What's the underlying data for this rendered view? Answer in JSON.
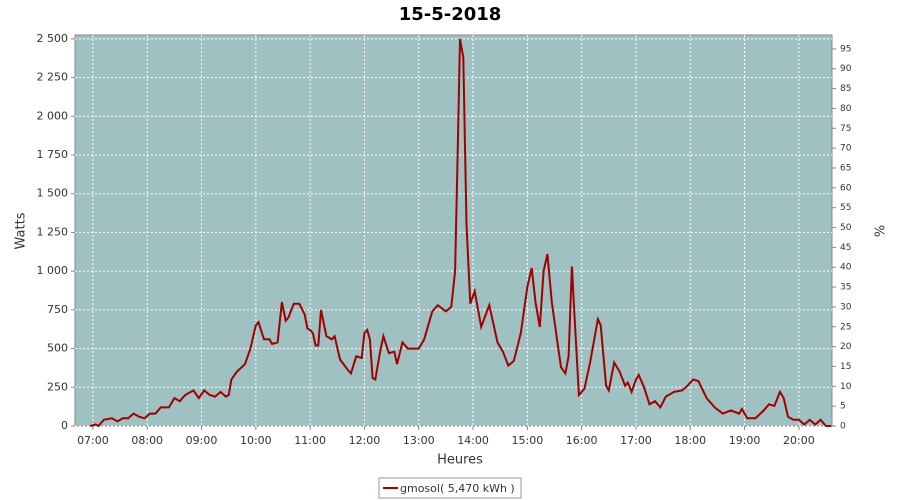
{
  "chart_data": {
    "type": "line",
    "title": "15-5-2018",
    "xlabel": "Heures",
    "ylabel": "Watts",
    "y2label": "%",
    "x": [
      6.95,
      7.05,
      7.1,
      7.2,
      7.35,
      7.45,
      7.55,
      7.65,
      7.75,
      7.85,
      7.95,
      8.05,
      8.15,
      8.25,
      8.4,
      8.5,
      8.6,
      8.7,
      8.85,
      8.95,
      9.05,
      9.15,
      9.25,
      9.35,
      9.45,
      9.5,
      9.55,
      9.65,
      9.8,
      9.9,
      10.0,
      10.05,
      10.15,
      10.25,
      10.3,
      10.4,
      10.48,
      10.55,
      10.6,
      10.7,
      10.8,
      10.9,
      10.95,
      11.0,
      11.05,
      11.1,
      11.15,
      11.2,
      11.3,
      11.4,
      11.45,
      11.55,
      11.7,
      11.75,
      11.85,
      11.95,
      12.0,
      12.05,
      12.1,
      12.15,
      12.2,
      12.3,
      12.35,
      12.45,
      12.55,
      12.6,
      12.7,
      12.8,
      12.9,
      13.0,
      13.1,
      13.25,
      13.35,
      13.5,
      13.6,
      13.67,
      13.72,
      13.76,
      13.82,
      13.88,
      13.95,
      14.03,
      14.15,
      14.3,
      14.45,
      14.55,
      14.65,
      14.75,
      14.88,
      15.0,
      15.08,
      15.15,
      15.23,
      15.3,
      15.37,
      15.45,
      15.55,
      15.62,
      15.7,
      15.76,
      15.82,
      15.87,
      15.95,
      16.05,
      16.15,
      16.3,
      16.35,
      16.45,
      16.5,
      16.6,
      16.7,
      16.8,
      16.85,
      16.92,
      17.0,
      17.05,
      17.15,
      17.25,
      17.35,
      17.45,
      17.55,
      17.7,
      17.85,
      17.95,
      18.05,
      18.15,
      18.3,
      18.45,
      18.6,
      18.75,
      18.9,
      18.95,
      19.05,
      19.2,
      19.35,
      19.45,
      19.55,
      19.65,
      19.72,
      19.8,
      19.9,
      20.0,
      20.1,
      20.2,
      20.3,
      20.4,
      20.5,
      20.6
    ],
    "series": [
      {
        "name": "gmosol( 5,470 kWh )",
        "color": "#a00000",
        "values": [
          0,
          10,
          0,
          40,
          50,
          30,
          50,
          50,
          80,
          60,
          50,
          80,
          80,
          120,
          120,
          180,
          160,
          200,
          230,
          180,
          230,
          200,
          190,
          220,
          190,
          200,
          300,
          350,
          400,
          500,
          650,
          670,
          560,
          560,
          530,
          540,
          800,
          680,
          700,
          790,
          790,
          720,
          630,
          620,
          600,
          520,
          520,
          750,
          580,
          560,
          580,
          430,
          360,
          340,
          450,
          440,
          600,
          620,
          560,
          310,
          300,
          500,
          580,
          470,
          480,
          400,
          540,
          500,
          500,
          500,
          560,
          740,
          780,
          740,
          770,
          1000,
          1800,
          2500,
          2380,
          1300,
          790,
          870,
          640,
          780,
          540,
          480,
          390,
          420,
          600,
          900,
          1020,
          800,
          640,
          1000,
          1110,
          800,
          550,
          380,
          340,
          450,
          1030,
          700,
          200,
          240,
          400,
          690,
          650,
          260,
          230,
          410,
          350,
          260,
          280,
          220,
          300,
          330,
          250,
          140,
          160,
          120,
          190,
          220,
          230,
          260,
          300,
          290,
          180,
          120,
          80,
          100,
          80,
          110,
          50,
          50,
          100,
          140,
          130,
          220,
          180,
          60,
          40,
          40,
          10,
          40,
          10,
          40,
          0,
          0
        ]
      }
    ],
    "xlim": [
      6.67,
      20.61
    ],
    "xticks": [
      {
        "value": 7,
        "label": "07:00"
      },
      {
        "value": 8,
        "label": "08:00"
      },
      {
        "value": 9,
        "label": "09:00"
      },
      {
        "value": 10,
        "label": "10:00"
      },
      {
        "value": 11,
        "label": "11:00"
      },
      {
        "value": 12,
        "label": "12:00"
      },
      {
        "value": 13,
        "label": "13:00"
      },
      {
        "value": 14,
        "label": "14:00"
      },
      {
        "value": 15,
        "label": "15:00"
      },
      {
        "value": 16,
        "label": "16:00"
      },
      {
        "value": 17,
        "label": "17:00"
      },
      {
        "value": 18,
        "label": "18:00"
      },
      {
        "value": 19,
        "label": "19:00"
      },
      {
        "value": 20,
        "label": "20:00"
      }
    ],
    "ylim": [
      0,
      2525
    ],
    "yticks": [
      0,
      250,
      500,
      750,
      {
        "value": 1000,
        "label": "1 000"
      },
      {
        "value": 1250,
        "label": "1 250"
      },
      {
        "value": 1500,
        "label": "1 500"
      },
      {
        "value": 1750,
        "label": "1 750"
      },
      {
        "value": 2000,
        "label": "2 000"
      },
      {
        "value": 2250,
        "label": "2 250"
      },
      {
        "value": 2500,
        "label": "2 500"
      }
    ],
    "y2lim": [
      0,
      98.5
    ],
    "y2ticks": [
      0,
      5,
      10,
      15,
      20,
      25,
      30,
      35,
      40,
      45,
      50,
      55,
      60,
      65,
      70,
      75,
      80,
      85,
      90,
      95
    ],
    "grid": true,
    "background": "#9fc1c1",
    "legend": "bottom"
  }
}
